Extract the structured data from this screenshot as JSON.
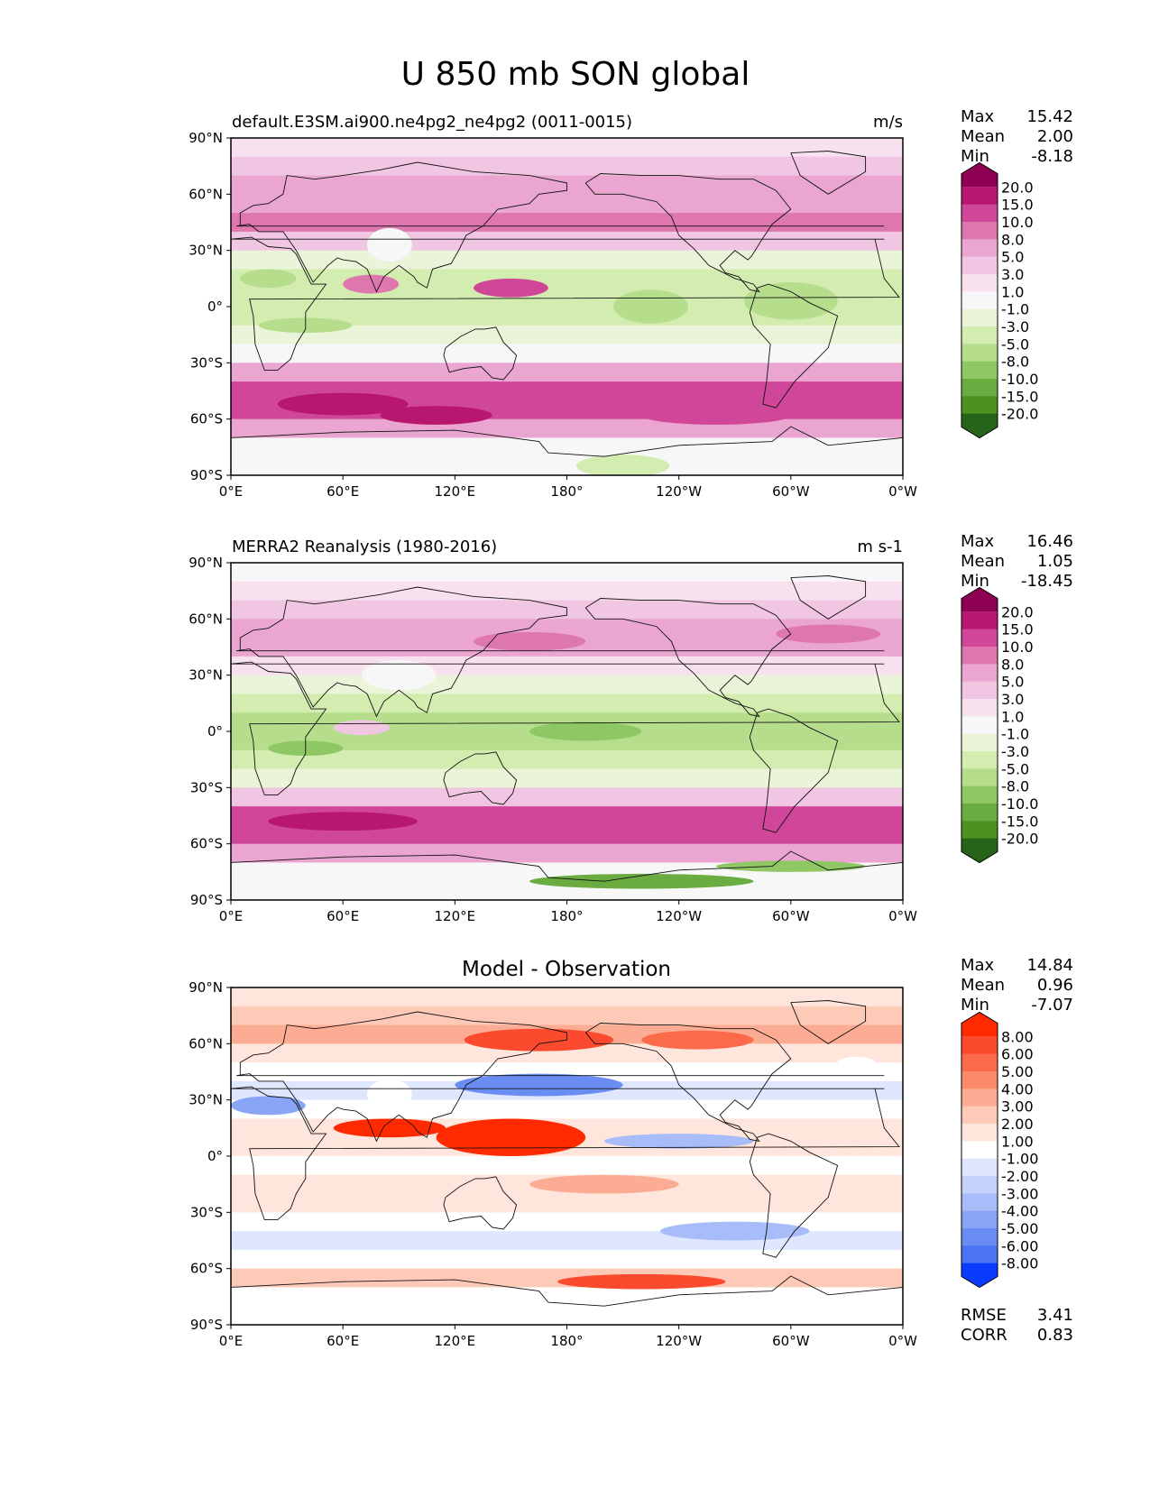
{
  "figure_title": "U 850 mb SON global",
  "chart_data": [
    {
      "type": "heatmap",
      "title": "default.E3SM.ai900.ne4pg2_ne4pg2 (0011-0015)",
      "units": "m/s",
      "stats": {
        "Max": "15.42",
        "Mean": "2.00",
        "Min": "-8.18"
      },
      "xticks": [
        "0°E",
        "60°E",
        "120°E",
        "180°",
        "120°W",
        "60°W",
        "0°W"
      ],
      "yticks": [
        "90°N",
        "60°N",
        "30°N",
        "0°",
        "30°S",
        "60°S",
        "90°S"
      ],
      "xlim": [
        0,
        360
      ],
      "ylim": [
        -90,
        90
      ],
      "colorbar": {
        "labels": [
          "20.0",
          "15.0",
          "10.0",
          "8.0",
          "5.0",
          "3.0",
          "1.0",
          "-1.0",
          "-3.0",
          "-5.0",
          "-8.0",
          "-10.0",
          "-15.0",
          "-20.0"
        ],
        "colors": [
          "#8e0152",
          "#b8176f",
          "#d0479a",
          "#de77ae",
          "#eaa6d0",
          "#f1c6e2",
          "#f8e1ef",
          "#f7f7f7",
          "#e9f4d8",
          "#d3ecb0",
          "#b6dd8c",
          "#8fc764",
          "#6aac40",
          "#4d9221",
          "#276419"
        ],
        "extend": "both"
      },
      "bands": [
        {
          "lat": 85,
          "value": 2.0
        },
        {
          "lat": 75,
          "value": 4.0
        },
        {
          "lat": 65,
          "value": 6.0
        },
        {
          "lat": 55,
          "value": 7.0
        },
        {
          "lat": 45,
          "value": 8.0
        },
        {
          "lat": 35,
          "value": 3.0
        },
        {
          "lat": 25,
          "value": -2.0
        },
        {
          "lat": 15,
          "value": -4.0
        },
        {
          "lat": 5,
          "value": -5.0
        },
        {
          "lat": -5,
          "value": -5.0
        },
        {
          "lat": -15,
          "value": -3.0
        },
        {
          "lat": -25,
          "value": 0.0
        },
        {
          "lat": -35,
          "value": 6.0
        },
        {
          "lat": -45,
          "value": 10.0
        },
        {
          "lat": -55,
          "value": 12.0
        },
        {
          "lat": -65,
          "value": 5.0
        },
        {
          "lat": -75,
          "value": 0.0
        },
        {
          "lat": -85,
          "value": 0.0
        }
      ],
      "features": [
        {
          "lon": 85,
          "lat": 33,
          "rlon": 12,
          "rlat": 9,
          "value": 0.0
        },
        {
          "lon": 150,
          "lat": 10,
          "rlon": 20,
          "rlat": 5,
          "value": 12.0
        },
        {
          "lon": 75,
          "lat": 12,
          "rlon": 15,
          "rlat": 5,
          "value": 9.0
        },
        {
          "lon": 225,
          "lat": 0,
          "rlon": 20,
          "rlat": 9,
          "value": -7.0
        },
        {
          "lon": 300,
          "lat": 3,
          "rlon": 25,
          "rlat": 10,
          "value": -6.5
        },
        {
          "lon": 40,
          "lat": -10,
          "rlon": 25,
          "rlat": 4,
          "value": -6.0
        },
        {
          "lon": 20,
          "lat": 15,
          "rlon": 15,
          "rlat": 5,
          "value": -6.0
        },
        {
          "lon": 60,
          "lat": -52,
          "rlon": 35,
          "rlat": 6,
          "value": 15.0
        },
        {
          "lon": 110,
          "lat": -58,
          "rlon": 30,
          "rlat": 5,
          "value": 15.0
        },
        {
          "lon": 260,
          "lat": -58,
          "rlon": 40,
          "rlat": 5,
          "value": 12.0
        },
        {
          "lon": 210,
          "lat": -85,
          "rlon": 25,
          "rlat": 6,
          "value": -4.0
        }
      ]
    },
    {
      "type": "heatmap",
      "title": "MERRA2 Reanalysis (1980-2016)",
      "units": "m s-1",
      "stats": {
        "Max": "16.46",
        "Mean": "1.05",
        "Min": "-18.45"
      },
      "xticks": [
        "0°E",
        "60°E",
        "120°E",
        "180°",
        "120°W",
        "60°W",
        "0°W"
      ],
      "yticks": [
        "90°N",
        "60°N",
        "30°N",
        "0°",
        "30°S",
        "60°S",
        "90°S"
      ],
      "xlim": [
        0,
        360
      ],
      "ylim": [
        -90,
        90
      ],
      "colorbar": {
        "labels": [
          "20.0",
          "15.0",
          "10.0",
          "8.0",
          "5.0",
          "3.0",
          "1.0",
          "-1.0",
          "-3.0",
          "-5.0",
          "-8.0",
          "-10.0",
          "-15.0",
          "-20.0"
        ],
        "colors": [
          "#8e0152",
          "#b8176f",
          "#d0479a",
          "#de77ae",
          "#eaa6d0",
          "#f1c6e2",
          "#f8e1ef",
          "#f7f7f7",
          "#e9f4d8",
          "#d3ecb0",
          "#b6dd8c",
          "#8fc764",
          "#6aac40",
          "#4d9221",
          "#276419"
        ],
        "extend": "both"
      },
      "bands": [
        {
          "lat": 85,
          "value": 0.0
        },
        {
          "lat": 75,
          "value": 2.0
        },
        {
          "lat": 65,
          "value": 4.0
        },
        {
          "lat": 55,
          "value": 5.0
        },
        {
          "lat": 45,
          "value": 6.0
        },
        {
          "lat": 35,
          "value": 2.0
        },
        {
          "lat": 25,
          "value": -3.0
        },
        {
          "lat": 15,
          "value": -5.0
        },
        {
          "lat": 5,
          "value": -6.0
        },
        {
          "lat": -5,
          "value": -6.0
        },
        {
          "lat": -15,
          "value": -5.0
        },
        {
          "lat": -25,
          "value": -2.0
        },
        {
          "lat": -35,
          "value": 3.0
        },
        {
          "lat": -45,
          "value": 10.0
        },
        {
          "lat": -55,
          "value": 12.0
        },
        {
          "lat": -65,
          "value": 6.0
        },
        {
          "lat": -75,
          "value": 0.0
        },
        {
          "lat": -85,
          "value": 0.0
        }
      ],
      "features": [
        {
          "lon": 90,
          "lat": 30,
          "rlon": 20,
          "rlat": 8,
          "value": 0.0
        },
        {
          "lon": 160,
          "lat": 48,
          "rlon": 30,
          "rlat": 5,
          "value": 9.0
        },
        {
          "lon": 320,
          "lat": 52,
          "rlon": 28,
          "rlat": 5,
          "value": 9.0
        },
        {
          "lon": 70,
          "lat": 2,
          "rlon": 15,
          "rlat": 4,
          "value": 4.0
        },
        {
          "lon": 190,
          "lat": 0,
          "rlon": 30,
          "rlat": 5,
          "value": -9.0
        },
        {
          "lon": 40,
          "lat": -9,
          "rlon": 20,
          "rlat": 4,
          "value": -9.0
        },
        {
          "lon": 60,
          "lat": -48,
          "rlon": 40,
          "rlat": 5,
          "value": 15.0
        },
        {
          "lon": 220,
          "lat": -80,
          "rlon": 60,
          "rlat": 4,
          "value": -15.0
        },
        {
          "lon": 300,
          "lat": -72,
          "rlon": 40,
          "rlat": 3,
          "value": -10.0
        }
      ]
    },
    {
      "type": "heatmap",
      "title": "Model - Observation",
      "units": "",
      "stats": {
        "Max": "14.84",
        "Mean": "0.96",
        "Min": "-7.07"
      },
      "extra_stats": {
        "RMSE": "3.41",
        "CORR": "0.83"
      },
      "xticks": [
        "0°E",
        "60°E",
        "120°E",
        "180°",
        "120°W",
        "60°W",
        "0°W"
      ],
      "yticks": [
        "90°N",
        "60°N",
        "30°N",
        "0°",
        "30°S",
        "60°S",
        "90°S"
      ],
      "xlim": [
        0,
        360
      ],
      "ylim": [
        -90,
        90
      ],
      "colorbar": {
        "labels": [
          "8.00",
          "6.00",
          "5.00",
          "4.00",
          "3.00",
          "2.00",
          "1.00",
          "-1.00",
          "-2.00",
          "-3.00",
          "-4.00",
          "-5.00",
          "-6.00",
          "-8.00"
        ],
        "colors": [
          "#ff2a00",
          "#fb4a2e",
          "#fb6a4a",
          "#fc8a6a",
          "#fcac92",
          "#fdcab7",
          "#fee6dc",
          "#ffffff",
          "#dfe7ff",
          "#c4d2fc",
          "#a7bcf9",
          "#8aa5f6",
          "#6a8df4",
          "#4a74f2",
          "#0a3cff"
        ],
        "extend": "both"
      },
      "bands": [
        {
          "lat": 85,
          "value": 1.5
        },
        {
          "lat": 75,
          "value": 2.5
        },
        {
          "lat": 65,
          "value": 3.0
        },
        {
          "lat": 55,
          "value": 1.5
        },
        {
          "lat": 45,
          "value": 0.0
        },
        {
          "lat": 35,
          "value": -1.5
        },
        {
          "lat": 25,
          "value": 0.0
        },
        {
          "lat": 15,
          "value": 1.5
        },
        {
          "lat": 5,
          "value": 1.5
        },
        {
          "lat": -5,
          "value": 0.0
        },
        {
          "lat": -15,
          "value": 1.5
        },
        {
          "lat": -25,
          "value": 1.5
        },
        {
          "lat": -35,
          "value": 0.0
        },
        {
          "lat": -45,
          "value": -1.5
        },
        {
          "lat": -55,
          "value": 0.0
        },
        {
          "lat": -65,
          "value": 2.5
        },
        {
          "lat": -75,
          "value": 0.0
        },
        {
          "lat": -85,
          "value": 0.0
        }
      ],
      "features": [
        {
          "lon": 165,
          "lat": 62,
          "rlon": 40,
          "rlat": 6,
          "value": 7.0
        },
        {
          "lon": 250,
          "lat": 62,
          "rlon": 30,
          "rlat": 5,
          "value": 5.0
        },
        {
          "lon": 150,
          "lat": 10,
          "rlon": 40,
          "rlat": 10,
          "value": 10.0
        },
        {
          "lon": 85,
          "lat": 15,
          "rlon": 30,
          "rlat": 5,
          "value": 9.0
        },
        {
          "lon": 165,
          "lat": 38,
          "rlon": 45,
          "rlat": 6,
          "value": -5.5
        },
        {
          "lon": 20,
          "lat": 27,
          "rlon": 20,
          "rlat": 5,
          "value": -4.5
        },
        {
          "lon": 240,
          "lat": 8,
          "rlon": 40,
          "rlat": 4,
          "value": -3.5
        },
        {
          "lon": 85,
          "lat": 33,
          "rlon": 12,
          "rlat": 8,
          "value": 0.0
        },
        {
          "lon": 200,
          "lat": -15,
          "rlon": 40,
          "rlat": 5,
          "value": 3.5
        },
        {
          "lon": 270,
          "lat": -40,
          "rlon": 40,
          "rlat": 5,
          "value": -3.5
        },
        {
          "lon": 220,
          "lat": -67,
          "rlon": 45,
          "rlat": 4,
          "value": 6.5
        },
        {
          "lon": 335,
          "lat": 50,
          "rlon": 10,
          "rlat": 3,
          "value": 0.0
        }
      ]
    }
  ]
}
